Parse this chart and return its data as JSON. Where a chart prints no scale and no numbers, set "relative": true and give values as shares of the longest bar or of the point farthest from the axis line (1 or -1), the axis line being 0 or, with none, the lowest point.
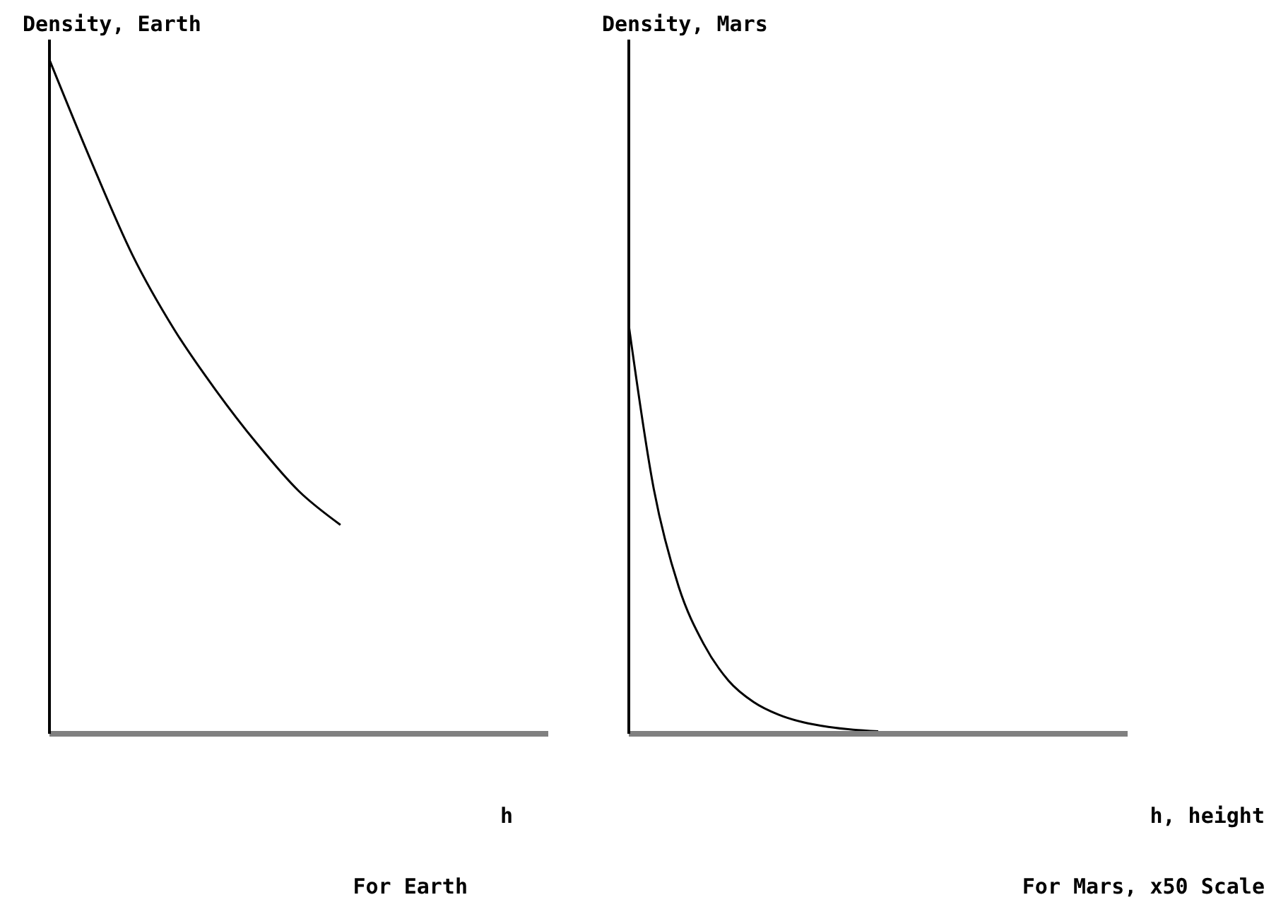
{
  "chart_data": [
    {
      "type": "line",
      "relative": true,
      "title": "Density, Earth",
      "xlabel": "h",
      "annotations": [
        "For Earth"
      ],
      "categories": [
        null,
        null,
        null,
        null,
        null,
        null,
        null,
        null,
        null,
        null,
        null,
        null,
        null
      ],
      "series": [
        {
          "color": "#000000",
          "values": [
            1,
            0.85,
            0.71,
            0.6,
            0.51,
            0.43,
            0.36,
            0.31,
            null,
            null,
            null,
            null,
            null
          ]
        }
      ]
    },
    {
      "type": "line",
      "relative": true,
      "title": "Density, Mars",
      "xlabel": "h, height",
      "annotations": [
        "For Mars, x50 Scale"
      ],
      "categories": [
        null,
        null,
        null,
        null,
        null,
        null,
        null,
        null,
        null,
        null,
        null,
        null,
        null,
        null,
        null,
        null,
        null,
        null,
        null,
        null,
        null
      ],
      "series": [
        {
          "color": "#000000",
          "values": [
            1,
            0.6,
            0.36,
            0.22,
            0.13,
            0.078,
            0.047,
            0.028,
            0.017,
            0.01,
            0.006,
            null,
            null,
            null,
            null,
            null,
            null,
            null,
            null,
            null,
            null
          ]
        }
      ]
    }
  ]
}
